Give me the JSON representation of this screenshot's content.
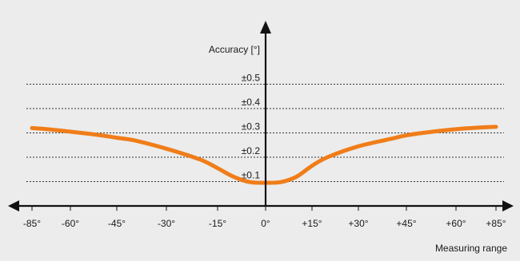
{
  "colors": {
    "background": "#ececec",
    "curve": "#f07d19",
    "axis": "#111111"
  },
  "chart_data": {
    "type": "line",
    "ylabel": "Accuracy [°]",
    "xlabel": "Measuring range",
    "x_ticks": [
      -85,
      -60,
      -45,
      -30,
      -15,
      0,
      15,
      30,
      45,
      60,
      85
    ],
    "x_tick_labels": [
      "-85°",
      "-60°",
      "-45°",
      "-30°",
      "-15°",
      "0°",
      "+15°",
      "+30°",
      "+45°",
      "+60°",
      "+85°"
    ],
    "y_ticks": [
      0.1,
      0.2,
      0.3,
      0.4,
      0.5
    ],
    "y_tick_labels": [
      "±0.1",
      "±0.2",
      "±0.3",
      "±0.4",
      "±0.5"
    ],
    "ylim": [
      0,
      0.5
    ],
    "xlim": [
      -85,
      85
    ],
    "grid": true,
    "series": [
      {
        "x": [
          -85,
          -75,
          -60,
          -50,
          -45,
          -40,
          -30,
          -20,
          -15,
          -10,
          -5,
          0,
          5,
          10,
          15,
          20,
          30,
          40,
          45,
          50,
          60,
          75,
          85
        ],
        "values": [
          0.32,
          0.315,
          0.305,
          0.29,
          0.28,
          0.27,
          0.235,
          0.19,
          0.155,
          0.12,
          0.098,
          0.095,
          0.098,
          0.12,
          0.165,
          0.2,
          0.245,
          0.275,
          0.29,
          0.3,
          0.315,
          0.322,
          0.325
        ]
      }
    ]
  }
}
